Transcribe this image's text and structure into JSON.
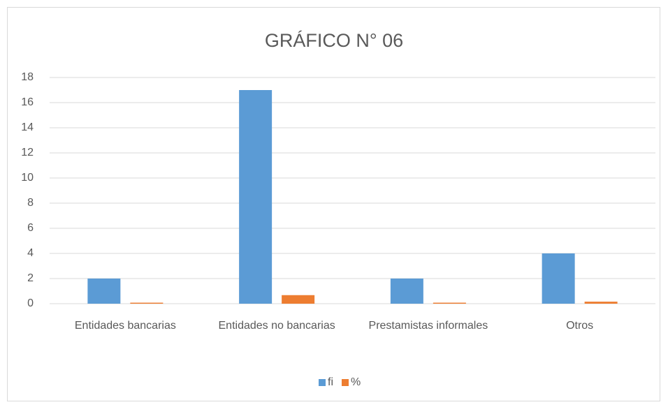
{
  "chart_data": {
    "type": "bar",
    "title": "GRÁFICO N° 06",
    "categories": [
      "Entidades bancarias",
      "Entidades no bancarias",
      "Prestamistas informales",
      "Otros"
    ],
    "series": [
      {
        "name": "fi",
        "color": "#5b9bd5",
        "values": [
          2,
          17,
          2,
          4
        ]
      },
      {
        "name": "%",
        "color": "#ed7d31",
        "values": [
          0.08,
          0.68,
          0.08,
          0.16
        ]
      }
    ],
    "ylim": [
      0,
      18
    ],
    "yticks": [
      0,
      2,
      4,
      6,
      8,
      10,
      12,
      14,
      16,
      18
    ],
    "grid": true,
    "legend": "bottom"
  }
}
